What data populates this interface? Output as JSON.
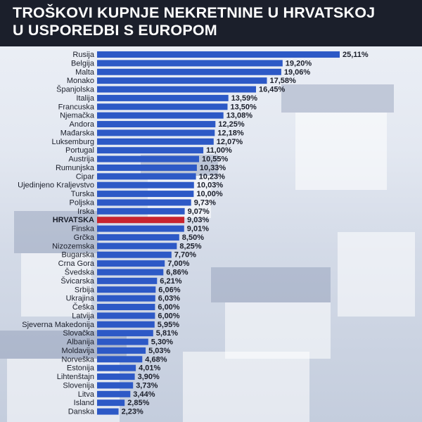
{
  "title": {
    "line1": "TROŠKOVI KUPNJE NEKRETNINE U HRVATSKOJ",
    "line2": "U USPOREDBI S EUROPOM"
  },
  "colors": {
    "header_bg": "#1b1f2b",
    "bar": "#2d59c6",
    "bar_highlight": "#c8242f",
    "text": "#1b1f2b"
  },
  "chart_data": {
    "type": "bar",
    "orientation": "horizontal",
    "highlight": "HRVATSKA",
    "categories": [
      "Rusija",
      "Belgija",
      "Malta",
      "Monako",
      "Španjolska",
      "Italija",
      "Francuska",
      "Njemačka",
      "Andora",
      "Mađarska",
      "Luksemburg",
      "Portugal",
      "Austrija",
      "Rumunjska",
      "Cipar",
      "Ujedinjeno Kraljevstvo",
      "Turska",
      "Poljska",
      "Irska",
      "HRVATSKA",
      "Finska",
      "Grčka",
      "Nizozemska",
      "Bugarska",
      "Crna Gora",
      "Švedska",
      "Švicarska",
      "Srbija",
      "Ukrajina",
      "Češka",
      "Latvija",
      "Sjeverna Makedonija",
      "Slovačka",
      "Albanija",
      "Moldavija",
      "Norveška",
      "Estonija",
      "Lihtenštajn",
      "Slovenija",
      "Litva",
      "Island",
      "Danska"
    ],
    "values": [
      25.11,
      19.2,
      19.06,
      17.58,
      16.45,
      13.59,
      13.5,
      13.08,
      12.25,
      12.18,
      12.07,
      11.0,
      10.55,
      10.33,
      10.23,
      10.03,
      10.0,
      9.73,
      9.07,
      9.03,
      9.01,
      8.5,
      8.25,
      7.7,
      7.0,
      6.86,
      6.21,
      6.06,
      6.03,
      6.0,
      6.0,
      5.95,
      5.81,
      5.3,
      5.03,
      4.68,
      4.01,
      3.9,
      3.73,
      3.44,
      2.85,
      2.23
    ],
    "value_labels": [
      "25,11%",
      "19,20%",
      "19,06%",
      "17,58%",
      "16,45%",
      "13,59%",
      "13,50%",
      "13,08%",
      "12,25%",
      "12,18%",
      "12,07%",
      "11,00%",
      "10,55%",
      "10,33%",
      "10,23%",
      "10,03%",
      "10,00%",
      "9,73%",
      "9,07%",
      "9,03%",
      "9,01%",
      "8,50%",
      "8,25%",
      "7,70%",
      "7,00%",
      "6,86%",
      "6,21%",
      "6,06%",
      "6,03%",
      "6,00%",
      "6,00%",
      "5,95%",
      "5,81%",
      "5,30%",
      "5,03%",
      "4,68%",
      "4,01%",
      "3,90%",
      "3,73%",
      "3,44%",
      "2,85%",
      "2,23%"
    ],
    "xlim": [
      0,
      25.11
    ],
    "grid": false
  }
}
